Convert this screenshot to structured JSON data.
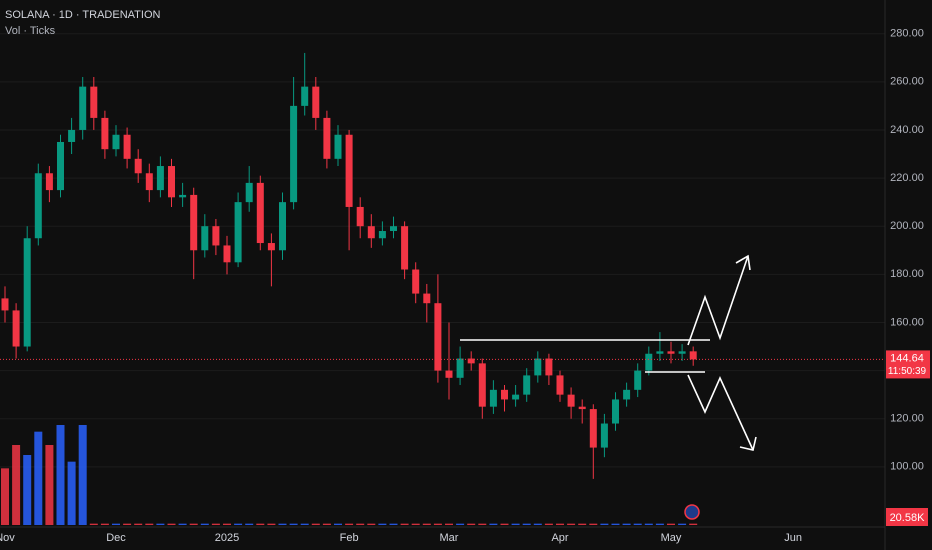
{
  "chart_data": {
    "type": "candlestick",
    "title": "SOLANA · 1D · TRADENATION",
    "subtitle": "Vol · Ticks",
    "categories": [
      "Nov",
      null,
      null,
      null,
      null,
      null,
      null,
      null,
      null,
      null,
      "Dec",
      null,
      null,
      null,
      null,
      null,
      null,
      null,
      null,
      null,
      "2025",
      null,
      null,
      null,
      null,
      null,
      null,
      null,
      null,
      null,
      null,
      "Feb",
      null,
      null,
      null,
      null,
      null,
      null,
      null,
      null,
      "Mar",
      null,
      null,
      null,
      null,
      null,
      null,
      null,
      null,
      null,
      "Apr",
      null,
      null,
      null,
      null,
      null,
      null,
      null,
      null,
      null,
      "May",
      null,
      null,
      null,
      null,
      null,
      null,
      null,
      null,
      null,
      null,
      "Jun"
    ],
    "open": [
      170,
      165,
      150,
      195,
      222,
      215,
      235,
      240,
      258,
      245,
      232,
      238,
      228,
      222,
      215,
      225,
      212,
      213,
      190,
      200,
      192,
      185,
      210,
      218,
      193,
      190,
      210,
      250,
      258,
      245,
      228,
      238,
      208,
      200,
      195,
      198,
      200,
      182,
      172,
      168,
      140,
      137,
      145,
      143,
      125,
      132,
      128,
      130,
      138,
      145,
      138,
      130,
      125,
      124,
      108,
      118,
      128,
      132,
      140,
      147,
      148,
      147,
      148,
      null,
      null,
      null,
      null,
      null,
      null,
      null,
      null,
      null
    ],
    "high": [
      175,
      168,
      200,
      226,
      225,
      238,
      245,
      262,
      262,
      248,
      242,
      241,
      232,
      226,
      229,
      228,
      218,
      216,
      205,
      203,
      196,
      214,
      225,
      221,
      197,
      214,
      262,
      272,
      262,
      248,
      242,
      240,
      212,
      205,
      202,
      204,
      202,
      185,
      176,
      180,
      160,
      150,
      148,
      145,
      136,
      134,
      134,
      141,
      148,
      147,
      140,
      133,
      128,
      126,
      122,
      131,
      135,
      143,
      150,
      156,
      152,
      151,
      150,
      null,
      null,
      null,
      null,
      null,
      null,
      null,
      null,
      null
    ],
    "low": [
      160,
      145,
      148,
      192,
      210,
      212,
      230,
      236,
      240,
      228,
      229,
      224,
      218,
      210,
      212,
      208,
      208,
      178,
      187,
      188,
      180,
      183,
      206,
      190,
      175,
      186,
      207,
      246,
      240,
      224,
      225,
      190,
      195,
      191,
      192,
      195,
      178,
      168,
      160,
      135,
      128,
      134,
      140,
      120,
      122,
      123,
      125,
      127,
      135,
      134,
      127,
      120,
      118,
      95,
      104,
      115,
      125,
      129,
      138,
      144,
      143,
      144,
      142,
      null,
      null,
      null,
      null,
      null,
      null,
      null,
      null,
      null
    ],
    "close": [
      165,
      150,
      195,
      222,
      215,
      235,
      240,
      258,
      245,
      232,
      238,
      228,
      222,
      215,
      225,
      212,
      213,
      190,
      200,
      192,
      185,
      210,
      218,
      193,
      190,
      210,
      250,
      258,
      245,
      228,
      238,
      208,
      200,
      195,
      198,
      200,
      182,
      172,
      168,
      140,
      137,
      145,
      143,
      125,
      132,
      128,
      130,
      138,
      145,
      138,
      130,
      125,
      124,
      108,
      118,
      128,
      132,
      140,
      147,
      148,
      147,
      148,
      144.64,
      null,
      null,
      null,
      null,
      null,
      null,
      null,
      null,
      null
    ],
    "volume": [
      85,
      120,
      105,
      140,
      120,
      150,
      95,
      150,
      2,
      2,
      2,
      2,
      2,
      2,
      2,
      2,
      2,
      2,
      2,
      2,
      2,
      2,
      2,
      2,
      2,
      2,
      2,
      2,
      2,
      2,
      2,
      2,
      2,
      2,
      2,
      2,
      2,
      2,
      2,
      2,
      2,
      2,
      2,
      2,
      2,
      2,
      2,
      2,
      2,
      2,
      2,
      2,
      2,
      2,
      2,
      2,
      2,
      2,
      2,
      2,
      2,
      2,
      2,
      null,
      null,
      null,
      null,
      null,
      null,
      null,
      null,
      null
    ],
    "up_color": "#089981",
    "down_color": "#f23645",
    "volume_up_color": "#2962ff",
    "volume_down_color": "#f23645",
    "ylim": [
      75,
      294
    ],
    "yticks": [
      {
        "value": 100,
        "label": "100.00"
      },
      {
        "value": 120,
        "label": "120.00"
      },
      {
        "value": 140,
        "label": "140.00"
      },
      {
        "value": 160,
        "label": "160.00"
      },
      {
        "value": 180,
        "label": "180.00"
      },
      {
        "value": 200,
        "label": "200.00"
      },
      {
        "value": 220,
        "label": "220.00"
      },
      {
        "value": 240,
        "label": "240.00"
      },
      {
        "value": 260,
        "label": "260.00"
      },
      {
        "value": 280,
        "label": "280.00"
      }
    ],
    "y2lim": [
      0,
      600
    ],
    "grid": true,
    "last_price": {
      "value": 144.64,
      "label": "144.64"
    },
    "countdown": "11:50:39",
    "last_volume": "20.58K"
  }
}
